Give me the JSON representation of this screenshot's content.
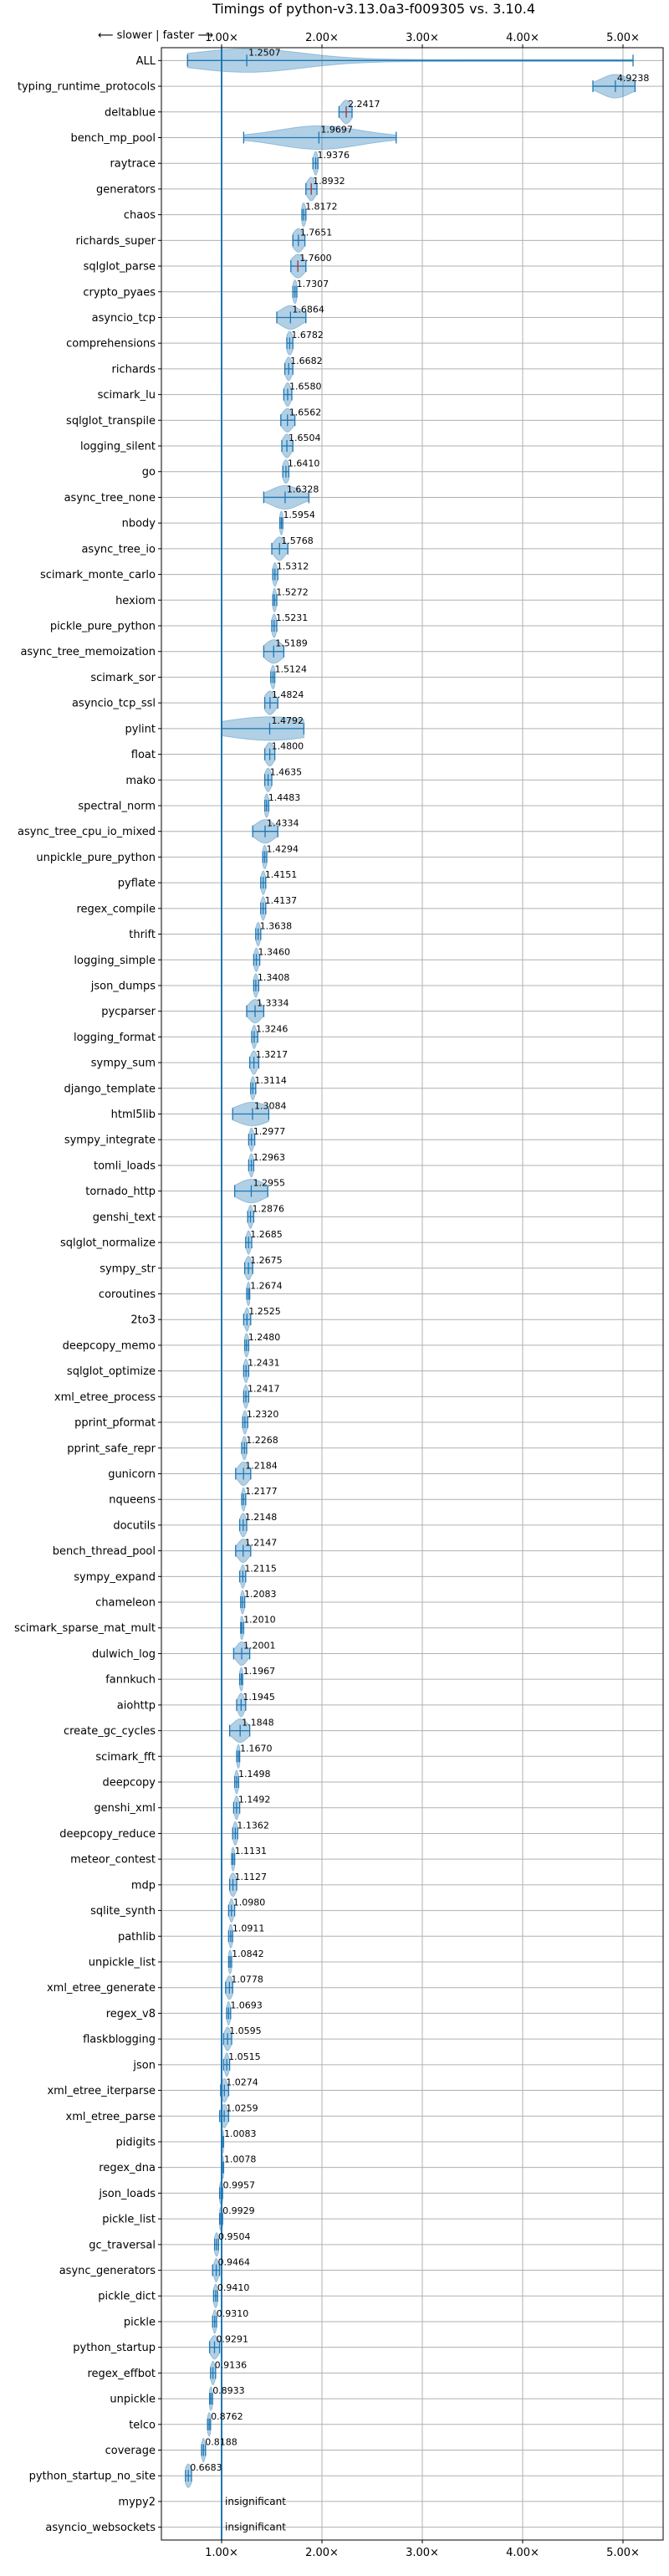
{
  "chart_data": {
    "type": "violin",
    "title": "Timings of python-v3.13.0a3-f009305 vs. 3.10.4",
    "direction_note": "⟵ slower | faster ⟶",
    "xlim": [
      0.4,
      5.4
    ],
    "x_ticks": [
      1,
      2,
      3,
      4,
      5
    ],
    "x_tick_labels": [
      "1.00×",
      "2.00×",
      "3.00×",
      "4.00×",
      "5.00×"
    ],
    "reference_line": 1.0,
    "grid": true,
    "insignificant_label": "insignificant",
    "benchmarks": [
      {
        "name": "ALL",
        "value": 1.2507,
        "label": "1.2507",
        "min": 0.66,
        "max": 5.1,
        "spread": 0.55,
        "outline": true
      },
      {
        "name": "typing_runtime_protocols",
        "value": 4.9238,
        "label": "4.9238",
        "min": 4.7,
        "max": 5.12,
        "spread": 0.14
      },
      {
        "name": "deltablue",
        "value": 2.2417,
        "label": "2.2417",
        "min": 2.17,
        "max": 2.3,
        "spread": 0.05,
        "red": true
      },
      {
        "name": "bench_mp_pool",
        "value": 1.9697,
        "label": "1.9697",
        "min": 1.22,
        "max": 2.74,
        "spread": 0.4
      },
      {
        "name": "raytrace",
        "value": 1.9376,
        "label": "1.9376",
        "min": 1.91,
        "max": 1.96,
        "spread": 0.02
      },
      {
        "name": "generators",
        "value": 1.8932,
        "label": "1.8932",
        "min": 1.84,
        "max": 1.95,
        "spread": 0.04,
        "red": true
      },
      {
        "name": "chaos",
        "value": 1.8172,
        "label": "1.8172",
        "min": 1.8,
        "max": 1.84,
        "spread": 0.02
      },
      {
        "name": "richards_super",
        "value": 1.7651,
        "label": "1.7651",
        "min": 1.71,
        "max": 1.83,
        "spread": 0.05
      },
      {
        "name": "sqlglot_parse",
        "value": 1.76,
        "label": "1.7600",
        "min": 1.69,
        "max": 1.84,
        "spread": 0.06,
        "red": true
      },
      {
        "name": "crypto_pyaes",
        "value": 1.7307,
        "label": "1.7307",
        "min": 1.71,
        "max": 1.75,
        "spread": 0.02
      },
      {
        "name": "asyncio_tcp",
        "value": 1.6864,
        "label": "1.6864",
        "min": 1.55,
        "max": 1.84,
        "spread": 0.1
      },
      {
        "name": "comprehensions",
        "value": 1.6782,
        "label": "1.6782",
        "min": 1.65,
        "max": 1.71,
        "spread": 0.03
      },
      {
        "name": "richards",
        "value": 1.6682,
        "label": "1.6682",
        "min": 1.63,
        "max": 1.71,
        "spread": 0.03
      },
      {
        "name": "scimark_lu",
        "value": 1.658,
        "label": "1.6580",
        "min": 1.62,
        "max": 1.7,
        "spread": 0.03
      },
      {
        "name": "sqlglot_transpile",
        "value": 1.6562,
        "label": "1.6562",
        "min": 1.59,
        "max": 1.73,
        "spread": 0.05
      },
      {
        "name": "logging_silent",
        "value": 1.6504,
        "label": "1.6504",
        "min": 1.6,
        "max": 1.71,
        "spread": 0.04
      },
      {
        "name": "go",
        "value": 1.641,
        "label": "1.6410",
        "min": 1.61,
        "max": 1.67,
        "spread": 0.03
      },
      {
        "name": "async_tree_none",
        "value": 1.6328,
        "label": "1.6328",
        "min": 1.42,
        "max": 1.87,
        "spread": 0.14
      },
      {
        "name": "nbody",
        "value": 1.5954,
        "label": "1.5954",
        "min": 1.58,
        "max": 1.61,
        "spread": 0.01
      },
      {
        "name": "async_tree_io",
        "value": 1.5768,
        "label": "1.5768",
        "min": 1.5,
        "max": 1.66,
        "spread": 0.05
      },
      {
        "name": "scimark_monte_carlo",
        "value": 1.5312,
        "label": "1.5312",
        "min": 1.51,
        "max": 1.56,
        "spread": 0.02
      },
      {
        "name": "hexiom",
        "value": 1.5272,
        "label": "1.5272",
        "min": 1.51,
        "max": 1.55,
        "spread": 0.01
      },
      {
        "name": "pickle_pure_python",
        "value": 1.5231,
        "label": "1.5231",
        "min": 1.5,
        "max": 1.55,
        "spread": 0.02
      },
      {
        "name": "async_tree_memoization",
        "value": 1.5189,
        "label": "1.5189",
        "min": 1.42,
        "max": 1.62,
        "spread": 0.08
      },
      {
        "name": "scimark_sor",
        "value": 1.5124,
        "label": "1.5124",
        "min": 1.49,
        "max": 1.53,
        "spread": 0.02
      },
      {
        "name": "asyncio_tcp_ssl",
        "value": 1.4824,
        "label": "1.4824",
        "min": 1.43,
        "max": 1.56,
        "spread": 0.05
      },
      {
        "name": "pylint",
        "value": 1.4792,
        "label": "1.4792",
        "min": 1.0,
        "max": 1.82,
        "spread": 0.45
      },
      {
        "name": "float",
        "value": 1.48,
        "label": "1.4800",
        "min": 1.43,
        "max": 1.53,
        "spread": 0.04
      },
      {
        "name": "mako",
        "value": 1.4635,
        "label": "1.4635",
        "min": 1.43,
        "max": 1.5,
        "spread": 0.03
      },
      {
        "name": "spectral_norm",
        "value": 1.4483,
        "label": "1.4483",
        "min": 1.43,
        "max": 1.47,
        "spread": 0.02
      },
      {
        "name": "async_tree_cpu_io_mixed",
        "value": 1.4334,
        "label": "1.4334",
        "min": 1.31,
        "max": 1.56,
        "spread": 0.09
      },
      {
        "name": "unpickle_pure_python",
        "value": 1.4294,
        "label": "1.4294",
        "min": 1.41,
        "max": 1.45,
        "spread": 0.02
      },
      {
        "name": "pyflate",
        "value": 1.4151,
        "label": "1.4151",
        "min": 1.39,
        "max": 1.44,
        "spread": 0.02
      },
      {
        "name": "regex_compile",
        "value": 1.4137,
        "label": "1.4137",
        "min": 1.39,
        "max": 1.44,
        "spread": 0.02
      },
      {
        "name": "thrift",
        "value": 1.3638,
        "label": "1.3638",
        "min": 1.34,
        "max": 1.39,
        "spread": 0.02
      },
      {
        "name": "logging_simple",
        "value": 1.346,
        "label": "1.3460",
        "min": 1.32,
        "max": 1.38,
        "spread": 0.02
      },
      {
        "name": "json_dumps",
        "value": 1.3408,
        "label": "1.3408",
        "min": 1.32,
        "max": 1.37,
        "spread": 0.02
      },
      {
        "name": "pycparser",
        "value": 1.3334,
        "label": "1.3334",
        "min": 1.25,
        "max": 1.42,
        "spread": 0.06
      },
      {
        "name": "logging_format",
        "value": 1.3246,
        "label": "1.3246",
        "min": 1.3,
        "max": 1.36,
        "spread": 0.02
      },
      {
        "name": "sympy_sum",
        "value": 1.3217,
        "label": "1.3217",
        "min": 1.28,
        "max": 1.37,
        "spread": 0.03
      },
      {
        "name": "django_template",
        "value": 1.3114,
        "label": "1.3114",
        "min": 1.29,
        "max": 1.34,
        "spread": 0.02
      },
      {
        "name": "html5lib",
        "value": 1.3084,
        "label": "1.3084",
        "min": 1.11,
        "max": 1.47,
        "spread": 0.16
      },
      {
        "name": "sympy_integrate",
        "value": 1.2977,
        "label": "1.2977",
        "min": 1.27,
        "max": 1.33,
        "spread": 0.02
      },
      {
        "name": "tomli_loads",
        "value": 1.2963,
        "label": "1.2963",
        "min": 1.27,
        "max": 1.32,
        "spread": 0.02
      },
      {
        "name": "tornado_http",
        "value": 1.2955,
        "label": "1.2955",
        "min": 1.13,
        "max": 1.46,
        "spread": 0.13
      },
      {
        "name": "genshi_text",
        "value": 1.2876,
        "label": "1.2876",
        "min": 1.26,
        "max": 1.32,
        "spread": 0.02
      },
      {
        "name": "sqlglot_normalize",
        "value": 1.2685,
        "label": "1.2685",
        "min": 1.24,
        "max": 1.3,
        "spread": 0.02
      },
      {
        "name": "sympy_str",
        "value": 1.2675,
        "label": "1.2675",
        "min": 1.23,
        "max": 1.31,
        "spread": 0.03
      },
      {
        "name": "coroutines",
        "value": 1.2674,
        "label": "1.2674",
        "min": 1.25,
        "max": 1.28,
        "spread": 0.01
      },
      {
        "name": "2to3",
        "value": 1.2525,
        "label": "1.2525",
        "min": 1.22,
        "max": 1.29,
        "spread": 0.02
      },
      {
        "name": "deepcopy_memo",
        "value": 1.248,
        "label": "1.2480",
        "min": 1.23,
        "max": 1.27,
        "spread": 0.02
      },
      {
        "name": "sqlglot_optimize",
        "value": 1.2431,
        "label": "1.2431",
        "min": 1.22,
        "max": 1.27,
        "spread": 0.02
      },
      {
        "name": "xml_etree_process",
        "value": 1.2417,
        "label": "1.2417",
        "min": 1.22,
        "max": 1.27,
        "spread": 0.02
      },
      {
        "name": "pprint_pformat",
        "value": 1.232,
        "label": "1.2320",
        "min": 1.21,
        "max": 1.26,
        "spread": 0.02
      },
      {
        "name": "pprint_safe_repr",
        "value": 1.2268,
        "label": "1.2268",
        "min": 1.2,
        "max": 1.25,
        "spread": 0.02
      },
      {
        "name": "gunicorn",
        "value": 1.2184,
        "label": "1.2184",
        "min": 1.14,
        "max": 1.29,
        "spread": 0.05
      },
      {
        "name": "nqueens",
        "value": 1.2177,
        "label": "1.2177",
        "min": 1.2,
        "max": 1.24,
        "spread": 0.01
      },
      {
        "name": "docutils",
        "value": 1.2148,
        "label": "1.2148",
        "min": 1.18,
        "max": 1.25,
        "spread": 0.03
      },
      {
        "name": "bench_thread_pool",
        "value": 1.2147,
        "label": "1.2147",
        "min": 1.14,
        "max": 1.29,
        "spread": 0.05
      },
      {
        "name": "sympy_expand",
        "value": 1.2115,
        "label": "1.2115",
        "min": 1.18,
        "max": 1.24,
        "spread": 0.02
      },
      {
        "name": "chameleon",
        "value": 1.2083,
        "label": "1.2083",
        "min": 1.19,
        "max": 1.23,
        "spread": 0.01
      },
      {
        "name": "scimark_sparse_mat_mult",
        "value": 1.201,
        "label": "1.2010",
        "min": 1.19,
        "max": 1.22,
        "spread": 0.01
      },
      {
        "name": "dulwich_log",
        "value": 1.2001,
        "label": "1.2001",
        "min": 1.12,
        "max": 1.28,
        "spread": 0.05
      },
      {
        "name": "fannkuch",
        "value": 1.1967,
        "label": "1.1967",
        "min": 1.18,
        "max": 1.21,
        "spread": 0.01
      },
      {
        "name": "aiohttp",
        "value": 1.1945,
        "label": "1.1945",
        "min": 1.15,
        "max": 1.24,
        "spread": 0.03
      },
      {
        "name": "create_gc_cycles",
        "value": 1.1848,
        "label": "1.1848",
        "min": 1.08,
        "max": 1.28,
        "spread": 0.07
      },
      {
        "name": "scimark_fft",
        "value": 1.167,
        "label": "1.1670",
        "min": 1.15,
        "max": 1.18,
        "spread": 0.01
      },
      {
        "name": "deepcopy",
        "value": 1.1498,
        "label": "1.1498",
        "min": 1.13,
        "max": 1.17,
        "spread": 0.01
      },
      {
        "name": "genshi_xml",
        "value": 1.1492,
        "label": "1.1492",
        "min": 1.12,
        "max": 1.18,
        "spread": 0.02
      },
      {
        "name": "deepcopy_reduce",
        "value": 1.1362,
        "label": "1.1362",
        "min": 1.11,
        "max": 1.16,
        "spread": 0.02
      },
      {
        "name": "meteor_contest",
        "value": 1.1131,
        "label": "1.1131",
        "min": 1.1,
        "max": 1.13,
        "spread": 0.01
      },
      {
        "name": "mdp",
        "value": 1.1127,
        "label": "1.1127",
        "min": 1.08,
        "max": 1.15,
        "spread": 0.03
      },
      {
        "name": "sqlite_synth",
        "value": 1.098,
        "label": "1.0980",
        "min": 1.07,
        "max": 1.13,
        "spread": 0.02
      },
      {
        "name": "pathlib",
        "value": 1.0911,
        "label": "1.0911",
        "min": 1.07,
        "max": 1.11,
        "spread": 0.01
      },
      {
        "name": "unpickle_list",
        "value": 1.0842,
        "label": "1.0842",
        "min": 1.07,
        "max": 1.1,
        "spread": 0.01
      },
      {
        "name": "xml_etree_generate",
        "value": 1.0778,
        "label": "1.0778",
        "min": 1.04,
        "max": 1.11,
        "spread": 0.03
      },
      {
        "name": "regex_v8",
        "value": 1.0693,
        "label": "1.0693",
        "min": 1.05,
        "max": 1.09,
        "spread": 0.01
      },
      {
        "name": "flaskblogging",
        "value": 1.0595,
        "label": "1.0595",
        "min": 1.02,
        "max": 1.1,
        "spread": 0.03
      },
      {
        "name": "json",
        "value": 1.0515,
        "label": "1.0515",
        "min": 1.02,
        "max": 1.08,
        "spread": 0.02
      },
      {
        "name": "xml_etree_iterparse",
        "value": 1.0274,
        "label": "1.0274",
        "min": 0.99,
        "max": 1.07,
        "spread": 0.03
      },
      {
        "name": "xml_etree_parse",
        "value": 1.0259,
        "label": "1.0259",
        "min": 0.98,
        "max": 1.07,
        "spread": 0.03
      },
      {
        "name": "pidigits",
        "value": 1.0083,
        "label": "1.0083",
        "min": 1.0,
        "max": 1.02,
        "spread": 0.01
      },
      {
        "name": "regex_dna",
        "value": 1.0078,
        "label": "1.0078",
        "min": 1.0,
        "max": 1.02,
        "spread": 0.01
      },
      {
        "name": "json_loads",
        "value": 0.9957,
        "label": "0.9957",
        "min": 0.98,
        "max": 1.01,
        "spread": 0.01
      },
      {
        "name": "pickle_list",
        "value": 0.9929,
        "label": "0.9929",
        "min": 0.98,
        "max": 1.01,
        "spread": 0.01
      },
      {
        "name": "gc_traversal",
        "value": 0.9504,
        "label": "0.9504",
        "min": 0.93,
        "max": 0.97,
        "spread": 0.02
      },
      {
        "name": "async_generators",
        "value": 0.9464,
        "label": "0.9464",
        "min": 0.91,
        "max": 0.98,
        "spread": 0.02
      },
      {
        "name": "pickle_dict",
        "value": 0.941,
        "label": "0.9410",
        "min": 0.92,
        "max": 0.96,
        "spread": 0.02
      },
      {
        "name": "pickle",
        "value": 0.931,
        "label": "0.9310",
        "min": 0.91,
        "max": 0.95,
        "spread": 0.01
      },
      {
        "name": "python_startup",
        "value": 0.9291,
        "label": "0.9291",
        "min": 0.88,
        "max": 0.98,
        "spread": 0.04
      },
      {
        "name": "regex_effbot",
        "value": 0.9136,
        "label": "0.9136",
        "min": 0.89,
        "max": 0.94,
        "spread": 0.02
      },
      {
        "name": "unpickle",
        "value": 0.8933,
        "label": "0.8933",
        "min": 0.88,
        "max": 0.91,
        "spread": 0.01
      },
      {
        "name": "telco",
        "value": 0.8762,
        "label": "0.8762",
        "min": 0.86,
        "max": 0.89,
        "spread": 0.01
      },
      {
        "name": "coverage",
        "value": 0.8188,
        "label": "0.8188",
        "min": 0.8,
        "max": 0.84,
        "spread": 0.01
      },
      {
        "name": "python_startup_no_site",
        "value": 0.6683,
        "label": "0.6683",
        "min": 0.64,
        "max": 0.7,
        "spread": 0.03
      },
      {
        "name": "mypy2",
        "insignificant": true
      },
      {
        "name": "asyncio_websockets",
        "insignificant": true
      }
    ]
  }
}
